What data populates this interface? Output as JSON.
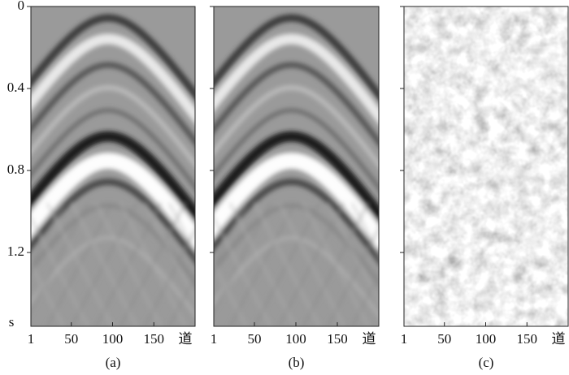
{
  "chart_data": [
    {
      "type": "image",
      "caption": "(a)",
      "xlim": [
        1,
        200
      ],
      "xticks": [
        1,
        50,
        100,
        150
      ],
      "xlabel": "道",
      "ylim": [
        0,
        1.56
      ],
      "yticks": [
        0,
        0.4,
        0.8,
        1.2
      ],
      "ylabel": "s"
    },
    {
      "type": "image",
      "caption": "(b)",
      "xlim": [
        1,
        200
      ],
      "xticks": [
        1,
        50,
        100,
        150
      ],
      "xlabel": "道",
      "ylim": [
        0,
        1.56
      ]
    },
    {
      "type": "image",
      "caption": "(c)",
      "xlim": [
        1,
        200
      ],
      "xticks": [
        1,
        50,
        100,
        150
      ],
      "xlabel": "道",
      "ylim": [
        0,
        1.56
      ]
    }
  ]
}
